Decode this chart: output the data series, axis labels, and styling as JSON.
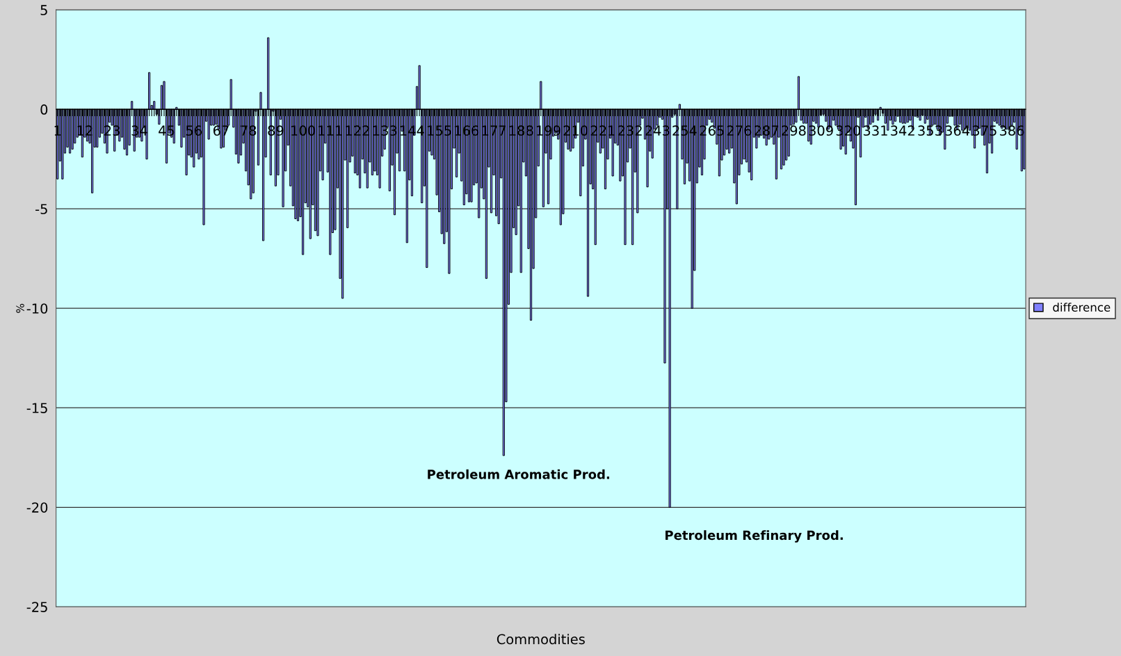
{
  "chart_data": {
    "type": "bar",
    "xlabel": "Commodities",
    "ylabel": "%",
    "categories": [
      "1",
      null,
      null,
      null,
      null,
      null,
      null,
      null,
      null,
      null,
      null,
      "12",
      null,
      null,
      null,
      null,
      null,
      null,
      null,
      null,
      null,
      null,
      "23",
      null,
      null,
      null,
      null,
      null,
      null,
      null,
      null,
      null,
      null,
      "34",
      null,
      null,
      null,
      null,
      null,
      null,
      null,
      null,
      null,
      null,
      "45",
      null,
      null,
      null,
      null,
      null,
      null,
      null,
      null,
      null,
      null,
      "56",
      null,
      null,
      null,
      null,
      null,
      null,
      null,
      null,
      null,
      null,
      "67",
      null,
      null,
      null,
      null,
      null,
      null,
      null,
      null,
      null,
      null,
      "78",
      null,
      null,
      null,
      null,
      null,
      null,
      null,
      null,
      null,
      null,
      "89",
      null,
      null,
      null,
      null,
      null,
      null,
      null,
      null,
      null,
      null,
      "100",
      null,
      null,
      null,
      null,
      null,
      null,
      null,
      null,
      null,
      null,
      "111",
      null,
      null,
      null,
      null,
      null,
      null,
      null,
      null,
      null,
      null,
      "122",
      null,
      null,
      null,
      null,
      null,
      null,
      null,
      null,
      null,
      null,
      "133",
      null,
      null,
      null,
      null,
      null,
      null,
      null,
      null,
      null,
      null,
      "144",
      null,
      null,
      null,
      null,
      null,
      null,
      null,
      null,
      null,
      null,
      "155",
      null,
      null,
      null,
      null,
      null,
      null,
      null,
      null,
      null,
      null,
      "166",
      null,
      null,
      null,
      null,
      null,
      null,
      null,
      null,
      null,
      null,
      "177",
      null,
      null,
      null,
      null,
      null,
      null,
      null,
      null,
      null,
      null,
      "188",
      null,
      null,
      null,
      null,
      null,
      null,
      null,
      null,
      null,
      null,
      "199",
      null,
      null,
      null,
      null,
      null,
      null,
      null,
      null,
      null,
      null,
      "210",
      null,
      null,
      null,
      null,
      null,
      null,
      null,
      null,
      null,
      null,
      "221",
      null,
      null,
      null,
      null,
      null,
      null,
      null,
      null,
      null,
      null,
      "232",
      null,
      null,
      null,
      null,
      null,
      null,
      null,
      null,
      null,
      null,
      "243",
      null,
      null,
      null,
      null,
      null,
      null,
      null,
      null,
      null,
      null,
      "254",
      null,
      null,
      null,
      null,
      null,
      null,
      null,
      null,
      null,
      null,
      "265",
      null,
      null,
      null,
      null,
      null,
      null,
      null,
      null,
      null,
      null,
      "276",
      null,
      null,
      null,
      null,
      null,
      null,
      null,
      null,
      null,
      null,
      "287",
      null,
      null,
      null,
      null,
      null,
      null,
      null,
      null,
      null,
      null,
      "298",
      null,
      null,
      null,
      null,
      null,
      null,
      null,
      null,
      null,
      null,
      "309",
      null,
      null,
      null,
      null,
      null,
      null,
      null,
      null,
      null,
      null,
      "320",
      null,
      null,
      null,
      null,
      null,
      null,
      null,
      null,
      null,
      null,
      "331",
      null,
      null,
      null,
      null,
      null,
      null,
      null,
      null,
      null,
      null,
      "342",
      null,
      null,
      null,
      null,
      null,
      null,
      null,
      null,
      null,
      null,
      "353",
      null,
      null,
      null,
      null,
      null,
      null,
      null,
      null,
      null,
      null,
      "364",
      null,
      null,
      null,
      null,
      null,
      null,
      null,
      null,
      null,
      null,
      "375",
      null,
      null,
      null,
      null,
      null,
      null,
      null,
      null,
      null,
      null,
      "386",
      null,
      null,
      null,
      null,
      null
    ],
    "series": [
      {
        "name": "difference",
        "color": "#8080ff",
        "values": [
          -3.5,
          -2.6,
          -3.5,
          -2.2,
          -1.9,
          -2.2,
          -2.0,
          -1.7,
          -1.4,
          -1.3,
          -2.4,
          -1.4,
          -1.6,
          -1.7,
          -4.2,
          -1.9,
          -1.9,
          -1.4,
          -1.2,
          -1.7,
          -2.2,
          -0.65,
          -0.8,
          -2.1,
          -1.3,
          -1.6,
          -1.4,
          -2.0,
          -2.3,
          -1.8,
          0.4,
          -2.1,
          -1.4,
          -1.4,
          -1.6,
          -0.9,
          -2.5,
          1.85,
          0.2,
          0.4,
          -0.25,
          -0.75,
          1.2,
          1.4,
          -2.7,
          -1.2,
          -1.4,
          -1.7,
          0.1,
          -0.8,
          -1.9,
          -1.4,
          -3.3,
          -2.3,
          -2.4,
          -2.9,
          -2.2,
          -2.5,
          -2.4,
          -5.8,
          -0.6,
          -1.5,
          -0.8,
          -0.8,
          -0.75,
          -1.0,
          -1.95,
          -1.9,
          -1.05,
          -0.8,
          1.5,
          -0.9,
          -2.25,
          -2.7,
          -2.3,
          -1.7,
          -3.1,
          -3.8,
          -4.5,
          -4.2,
          -0.1,
          -2.8,
          0.85,
          -6.6,
          -2.4,
          3.6,
          -3.3,
          -0.1,
          -3.85,
          -3.3,
          -0.5,
          -4.9,
          -3.1,
          -1.8,
          -3.85,
          -4.85,
          -5.5,
          -5.6,
          -5.4,
          -7.3,
          -4.7,
          -4.9,
          -6.5,
          -4.8,
          -6.1,
          -6.35,
          -3.1,
          -3.55,
          -1.7,
          -3.15,
          -7.3,
          -6.2,
          -6.05,
          -3.95,
          -8.5,
          -9.5,
          -2.55,
          -5.95,
          -2.65,
          -2.35,
          -3.2,
          -3.3,
          -3.95,
          -2.5,
          -3.2,
          -3.95,
          -2.65,
          -3.3,
          -3.1,
          -3.3,
          -3.95,
          -2.35,
          -2.0,
          -0.9,
          -4.1,
          -2.8,
          -5.3,
          -2.2,
          -3.1,
          -1.1,
          -3.1,
          -6.7,
          -3.55,
          -4.35,
          -1.3,
          1.15,
          2.2,
          -4.7,
          -3.85,
          -7.95,
          -2.1,
          -2.3,
          -2.5,
          -4.3,
          -5.15,
          -6.25,
          -6.75,
          -6.15,
          -8.25,
          -4.0,
          -1.95,
          -3.4,
          -2.2,
          -3.6,
          -4.8,
          -4.25,
          -4.65,
          -4.65,
          -3.8,
          -3.7,
          -5.45,
          -3.95,
          -4.5,
          -8.5,
          -2.9,
          -5.2,
          -3.3,
          -5.35,
          -5.75,
          -3.45,
          -17.4,
          -14.7,
          -9.8,
          -8.2,
          -5.95,
          -6.3,
          -4.85,
          -8.2,
          -2.65,
          -3.35,
          -7.0,
          -10.6,
          -8.0,
          -5.45,
          -2.85,
          1.4,
          -4.9,
          -2.2,
          -4.75,
          -2.5,
          -1.35,
          -1.2,
          -1.5,
          -5.8,
          -5.25,
          -1.65,
          -2.0,
          -2.1,
          -1.95,
          -1.45,
          -0.65,
          -4.35,
          -2.85,
          -1.5,
          -9.4,
          -3.75,
          -4.0,
          -6.8,
          -1.65,
          -2.2,
          -1.95,
          -4.0,
          -2.5,
          -1.45,
          -3.35,
          -1.7,
          -1.8,
          -3.6,
          -3.35,
          -6.8,
          -2.65,
          -1.95,
          -6.8,
          -3.15,
          -5.2,
          -0.8,
          -0.45,
          -1.5,
          -3.9,
          -2.1,
          -2.45,
          -1.0,
          -0.8,
          -0.4,
          -0.5,
          -12.75,
          -5.0,
          -20.0,
          -0.4,
          -0.25,
          -5.0,
          0.25,
          -2.5,
          -3.75,
          -2.7,
          -3.6,
          -10.0,
          -8.1,
          -3.7,
          -2.9,
          -3.3,
          -2.5,
          -0.8,
          -0.5,
          -0.65,
          -0.95,
          -1.75,
          -3.35,
          -2.55,
          -2.3,
          -2.0,
          -2.2,
          -1.95,
          -3.7,
          -4.75,
          -3.3,
          -2.75,
          -2.5,
          -2.65,
          -3.15,
          -3.55,
          -1.4,
          -1.95,
          -1.4,
          -1.3,
          -1.45,
          -1.8,
          -1.5,
          -1.4,
          -1.75,
          -3.5,
          -1.4,
          -3.0,
          -2.8,
          -2.55,
          -2.35,
          -0.8,
          -0.75,
          -0.65,
          1.65,
          -0.55,
          -0.7,
          -0.7,
          -1.6,
          -1.75,
          -0.6,
          -0.7,
          -0.9,
          -0.3,
          -0.25,
          -0.6,
          -1.0,
          -0.9,
          -0.55,
          -0.8,
          -1.0,
          -2.0,
          -1.85,
          -2.25,
          -1.15,
          -1.6,
          -1.95,
          -4.8,
          -0.4,
          -2.4,
          -0.9,
          -0.4,
          -0.95,
          -0.75,
          -0.65,
          -0.25,
          -0.55,
          0.1,
          -0.2,
          -0.7,
          -1.05,
          -0.55,
          -0.75,
          -0.6,
          -0.35,
          -0.65,
          -0.7,
          -0.7,
          -0.65,
          -0.55,
          -1.0,
          -0.35,
          -0.4,
          -0.55,
          -0.3,
          -0.7,
          -0.5,
          -1.3,
          -0.8,
          -0.75,
          -1.0,
          -1.3,
          -1.15,
          -2.0,
          -0.7,
          -0.35,
          -0.35,
          -0.8,
          -1.0,
          -0.75,
          -1.05,
          -1.0,
          -0.95,
          -1.05,
          -1.3,
          -1.95,
          -1.0,
          -0.95,
          -1.3,
          -1.8,
          -3.2,
          -1.7,
          -2.2,
          -0.6,
          -0.7,
          -0.8,
          -0.95,
          -0.9,
          -1.0,
          -1.05,
          -0.8,
          -0.65,
          -2.0,
          -1.0,
          -3.1,
          -3.0
        ]
      }
    ],
    "ylim": [
      -25,
      5
    ],
    "yticks": [
      -25,
      -20,
      -15,
      -10,
      -5,
      0,
      5
    ],
    "grid": "y",
    "legend": "right",
    "annotations": [
      "Petroleum Aromatic Prod.",
      "Petroleum Refinary Prod."
    ]
  }
}
